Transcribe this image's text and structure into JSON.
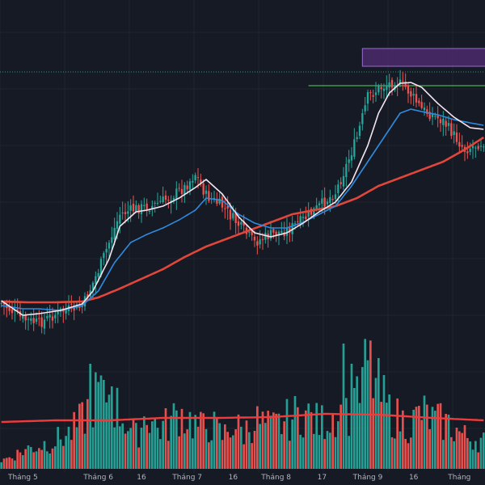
{
  "colors": {
    "background": "#161a25",
    "up": "#26a69a",
    "down": "#ef5350",
    "ma_fast": "#f3e4ef",
    "ma_mid": "#2f8be0",
    "ma_slow": "#e0473a",
    "volume_ma": "#ef3b3b",
    "zone_fill": "#4b2a6b",
    "zone_border": "#9b6bd0",
    "support_line": "#4caf50",
    "dotted_line": "#2f9c86",
    "grid": "#1f2430"
  },
  "chart_data": {
    "type": "candlestick",
    "title": "",
    "xlabel": "",
    "ylabel": "",
    "x_tick_labels": [
      "Tháng 5",
      "Tháng 6",
      "16",
      "Tháng 7",
      "16",
      "Tháng 8",
      "17",
      "Tháng 9",
      "16",
      "Tháng"
    ],
    "x_tick_positions": [
      8,
      36,
      52,
      69,
      86,
      102,
      119,
      136,
      153,
      170
    ],
    "n_bars": 180,
    "ylim": [
      300,
      900
    ],
    "price_anchors": [
      [
        0,
        375
      ],
      [
        8,
        395
      ],
      [
        14,
        400
      ],
      [
        22,
        385
      ],
      [
        30,
        380
      ],
      [
        36,
        335
      ],
      [
        44,
        265
      ],
      [
        50,
        258
      ],
      [
        56,
        255
      ],
      [
        62,
        245
      ],
      [
        68,
        232
      ],
      [
        72,
        215
      ],
      [
        76,
        242
      ],
      [
        82,
        255
      ],
      [
        88,
        278
      ],
      [
        94,
        300
      ],
      [
        100,
        290
      ],
      [
        106,
        285
      ],
      [
        112,
        272
      ],
      [
        118,
        255
      ],
      [
        124,
        238
      ],
      [
        128,
        205
      ],
      [
        132,
        170
      ],
      [
        136,
        120
      ],
      [
        140,
        110
      ],
      [
        146,
        100
      ],
      [
        150,
        108
      ],
      [
        156,
        135
      ],
      [
        164,
        150
      ],
      [
        172,
        185
      ],
      [
        179,
        175
      ]
    ],
    "ma_fast_anchors": [
      [
        0,
        372
      ],
      [
        8,
        390
      ],
      [
        14,
        388
      ],
      [
        22,
        384
      ],
      [
        30,
        376
      ],
      [
        34,
        360
      ],
      [
        40,
        320
      ],
      [
        44,
        280
      ],
      [
        50,
        262
      ],
      [
        54,
        260
      ],
      [
        60,
        255
      ],
      [
        66,
        245
      ],
      [
        72,
        232
      ],
      [
        76,
        222
      ],
      [
        82,
        240
      ],
      [
        88,
        268
      ],
      [
        94,
        288
      ],
      [
        100,
        293
      ],
      [
        106,
        288
      ],
      [
        112,
        276
      ],
      [
        118,
        262
      ],
      [
        124,
        250
      ],
      [
        130,
        225
      ],
      [
        136,
        180
      ],
      [
        140,
        140
      ],
      [
        144,
        115
      ],
      [
        148,
        103
      ],
      [
        152,
        102
      ],
      [
        156,
        108
      ],
      [
        162,
        128
      ],
      [
        168,
        145
      ],
      [
        174,
        158
      ],
      [
        179,
        160
      ]
    ],
    "ma_mid_anchors": [
      [
        0,
        378
      ],
      [
        8,
        382
      ],
      [
        14,
        382
      ],
      [
        22,
        384
      ],
      [
        30,
        378
      ],
      [
        36,
        360
      ],
      [
        42,
        325
      ],
      [
        48,
        300
      ],
      [
        54,
        290
      ],
      [
        60,
        282
      ],
      [
        66,
        272
      ],
      [
        72,
        260
      ],
      [
        76,
        245
      ],
      [
        82,
        248
      ],
      [
        88,
        265
      ],
      [
        94,
        276
      ],
      [
        100,
        282
      ],
      [
        106,
        282
      ],
      [
        112,
        275
      ],
      [
        118,
        265
      ],
      [
        124,
        255
      ],
      [
        130,
        230
      ],
      [
        136,
        200
      ],
      [
        142,
        170
      ],
      [
        148,
        140
      ],
      [
        152,
        135
      ],
      [
        156,
        138
      ],
      [
        162,
        142
      ],
      [
        168,
        148
      ],
      [
        174,
        152
      ],
      [
        179,
        155
      ]
    ],
    "ma_slow_anchors": [
      [
        0,
        373
      ],
      [
        10,
        374
      ],
      [
        20,
        374
      ],
      [
        30,
        373
      ],
      [
        36,
        368
      ],
      [
        44,
        357
      ],
      [
        52,
        345
      ],
      [
        60,
        333
      ],
      [
        68,
        318
      ],
      [
        76,
        305
      ],
      [
        84,
        295
      ],
      [
        92,
        285
      ],
      [
        100,
        275
      ],
      [
        108,
        265
      ],
      [
        116,
        260
      ],
      [
        124,
        255
      ],
      [
        132,
        245
      ],
      [
        140,
        230
      ],
      [
        148,
        220
      ],
      [
        156,
        210
      ],
      [
        164,
        200
      ],
      [
        172,
        185
      ],
      [
        179,
        170
      ]
    ],
    "volume_anchors": [
      [
        0,
        10
      ],
      [
        10,
        25
      ],
      [
        20,
        35
      ],
      [
        26,
        45
      ],
      [
        30,
        60
      ],
      [
        34,
        85
      ],
      [
        38,
        100
      ],
      [
        42,
        80
      ],
      [
        46,
        60
      ],
      [
        50,
        40
      ],
      [
        54,
        70
      ],
      [
        58,
        50
      ],
      [
        62,
        55
      ],
      [
        66,
        70
      ],
      [
        70,
        60
      ],
      [
        74,
        50
      ],
      [
        78,
        55
      ],
      [
        82,
        40
      ],
      [
        86,
        55
      ],
      [
        90,
        45
      ],
      [
        94,
        60
      ],
      [
        100,
        50
      ],
      [
        106,
        60
      ],
      [
        112,
        70
      ],
      [
        118,
        55
      ],
      [
        124,
        70
      ],
      [
        128,
        65
      ],
      [
        132,
        80
      ],
      [
        136,
        130
      ],
      [
        140,
        95
      ],
      [
        144,
        70
      ],
      [
        148,
        60
      ],
      [
        152,
        55
      ],
      [
        156,
        70
      ],
      [
        160,
        60
      ],
      [
        166,
        55
      ],
      [
        172,
        40
      ],
      [
        179,
        35
      ]
    ],
    "volume_spikes": [
      [
        127,
        155
      ],
      [
        130,
        130
      ],
      [
        33,
        130
      ],
      [
        41,
        102
      ],
      [
        38,
        110
      ],
      [
        131,
        100
      ]
    ],
    "volume_ma_anchors": [
      [
        0,
        58
      ],
      [
        20,
        60
      ],
      [
        40,
        60
      ],
      [
        60,
        63
      ],
      [
        80,
        63
      ],
      [
        100,
        64
      ],
      [
        120,
        68
      ],
      [
        140,
        67
      ],
      [
        160,
        63
      ],
      [
        179,
        60
      ]
    ],
    "horizontal_zone": {
      "x_start": 134,
      "x_end": 179,
      "y_top": 850,
      "y_bottom": 815
    },
    "support_line": {
      "x_start": 114,
      "x_end": 179,
      "y": 795
    },
    "dotted_line": {
      "y": 812
    }
  }
}
